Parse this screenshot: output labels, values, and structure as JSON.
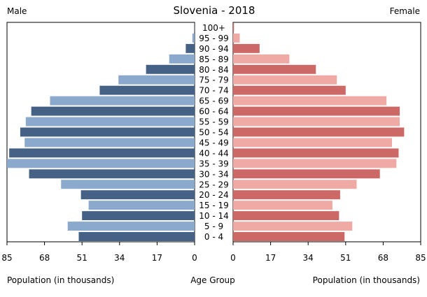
{
  "chart_data": {
    "type": "bar",
    "title": "Slovenia - 2018",
    "left_label": "Male",
    "right_label": "Female",
    "xlabel_left": "Population (in thousands)",
    "xlabel_center": "Age Group",
    "xlabel_right": "Population (in thousands)",
    "xlim": [
      0,
      85
    ],
    "xticks": [
      85,
      68,
      51,
      34,
      17,
      0
    ],
    "xticks_right": [
      0,
      17,
      34,
      51,
      68,
      85
    ],
    "categories": [
      "100+",
      "95 - 99",
      "90 - 94",
      "85 - 89",
      "80 - 84",
      "75 - 79",
      "70 - 74",
      "65 - 69",
      "60 - 64",
      "55 - 59",
      "50 - 54",
      "45 - 49",
      "40 - 44",
      "35 - 39",
      "30 - 34",
      "25 - 29",
      "20 - 24",
      "15 - 19",
      "10 - 14",
      "5 - 9",
      "0 - 4"
    ],
    "series": [
      {
        "name": "Male",
        "values": [
          0.1,
          1,
          4,
          11.5,
          22,
          34.5,
          43,
          65.5,
          74,
          76.5,
          79,
          77,
          84,
          85,
          75,
          60.5,
          51.5,
          48,
          51,
          57.5,
          52.5
        ]
      },
      {
        "name": "Female",
        "values": [
          0.4,
          3,
          12,
          25.5,
          37.5,
          47,
          51,
          69.5,
          75.5,
          75.5,
          77.5,
          72,
          75,
          74,
          66.5,
          56,
          48.5,
          45,
          48,
          54,
          50.5
        ]
      }
    ],
    "colors": {
      "male_odd": "#8aa9cc",
      "male_even": "#456186",
      "female_odd": "#f0aaa6",
      "female_even": "#cc6966"
    }
  }
}
